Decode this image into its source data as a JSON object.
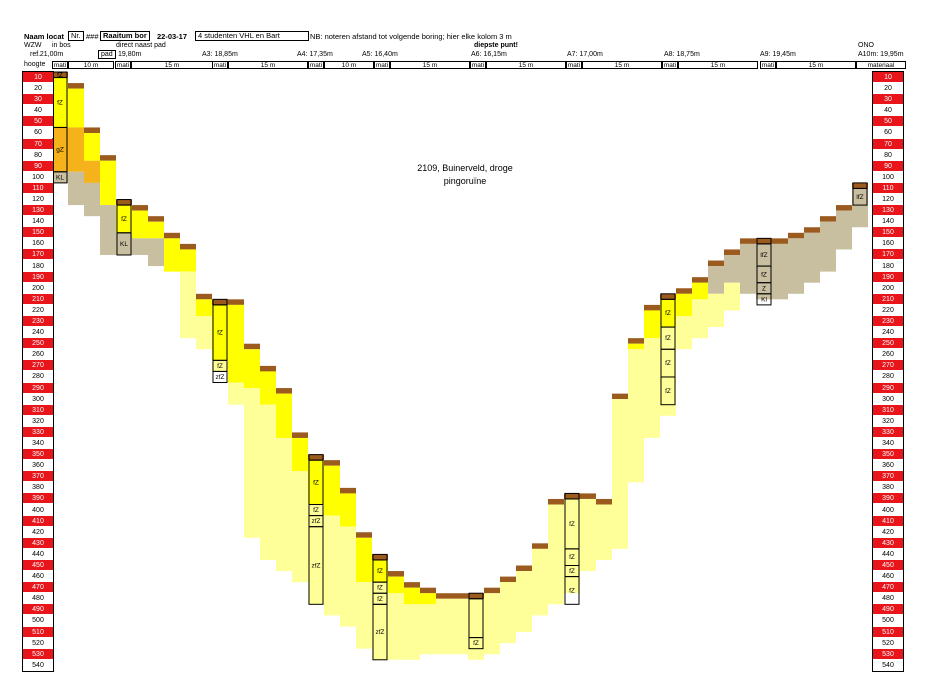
{
  "header": {
    "naam_locatie": "Naam locat",
    "nr": "Nr.",
    "hash": "###",
    "raai": "Raaitum bor",
    "datum": "22-03-17",
    "team": "4 studenten VHL en Bart",
    "note": "NB: noteren afstand tot volgende boring; hier elke kolom 3 m",
    "left_dir": "WZW",
    "left_loc": "in bos",
    "right_dir": "ONO",
    "pad_note": "direct naast pad",
    "deepest": "diepste punt!",
    "ref_label": "ref.",
    "hoogte_label": "hoogte",
    "materiaal_label": "materiaal",
    "pad_label": "pad"
  },
  "boreholes": [
    {
      "name": ": 21,00m"
    },
    {
      "name": "19,80m"
    },
    {
      "name": "A3: 18,85m"
    },
    {
      "name": "A4: 17,35m"
    },
    {
      "name": "A5: 16,40m"
    },
    {
      "name": "A6: 16,15m"
    },
    {
      "name": "A7: 17,00m"
    },
    {
      "name": "A8: 18,75m"
    },
    {
      "name": "A9: 19,45m"
    },
    {
      "name": "A10m: 19,95m"
    }
  ],
  "segments": [
    "mati",
    "10 m",
    "mati",
    "15 m",
    "15 m",
    "mati",
    "10 m",
    "mati",
    "15 m",
    "mati",
    "15 m",
    "mati",
    "15 m",
    "mati",
    "15 m",
    "mati",
    "15 m",
    "materiaal"
  ],
  "title": {
    "line1": "2109, Buinerveld, droge",
    "line2": "pingoruïne"
  },
  "chart_data": {
    "type": "cross-section profile",
    "scale_label": "hoogte",
    "depth_ticks": [
      10,
      20,
      30,
      40,
      50,
      60,
      70,
      80,
      90,
      100,
      110,
      120,
      130,
      140,
      150,
      160,
      170,
      180,
      190,
      200,
      210,
      220,
      230,
      240,
      250,
      260,
      270,
      280,
      290,
      300,
      310,
      320,
      330,
      340,
      350,
      360,
      370,
      380,
      390,
      400,
      410,
      420,
      430,
      440,
      450,
      460,
      470,
      480,
      490,
      500,
      510,
      520,
      530,
      540
    ],
    "material_labels": [
      "fZ",
      "gZ",
      "fZ",
      "KL",
      "fZ",
      "KL",
      "fZ",
      "fZ",
      "fZ",
      "fZ",
      "fZ",
      "fZ",
      "zfZ",
      "fZ",
      "fZ",
      "zfZ",
      "zfZ",
      "fZ",
      "fZ",
      "fZ",
      "zfZ",
      "fZ",
      "fZ",
      "fZ",
      "fZ",
      "fZ",
      "fZ",
      "fZ",
      "fZ",
      "fZ",
      "fZ",
      "lfZ",
      "fZ",
      "Z",
      "Kl",
      "lfZ"
    ],
    "colors": {
      "humus": "#9b5a1e",
      "yellow": "#ffff00",
      "pale_yellow": "#ffff99",
      "orange": "#f5b21a",
      "grey_tan": "#c8bea0",
      "tick_red": "#e8151b"
    }
  }
}
